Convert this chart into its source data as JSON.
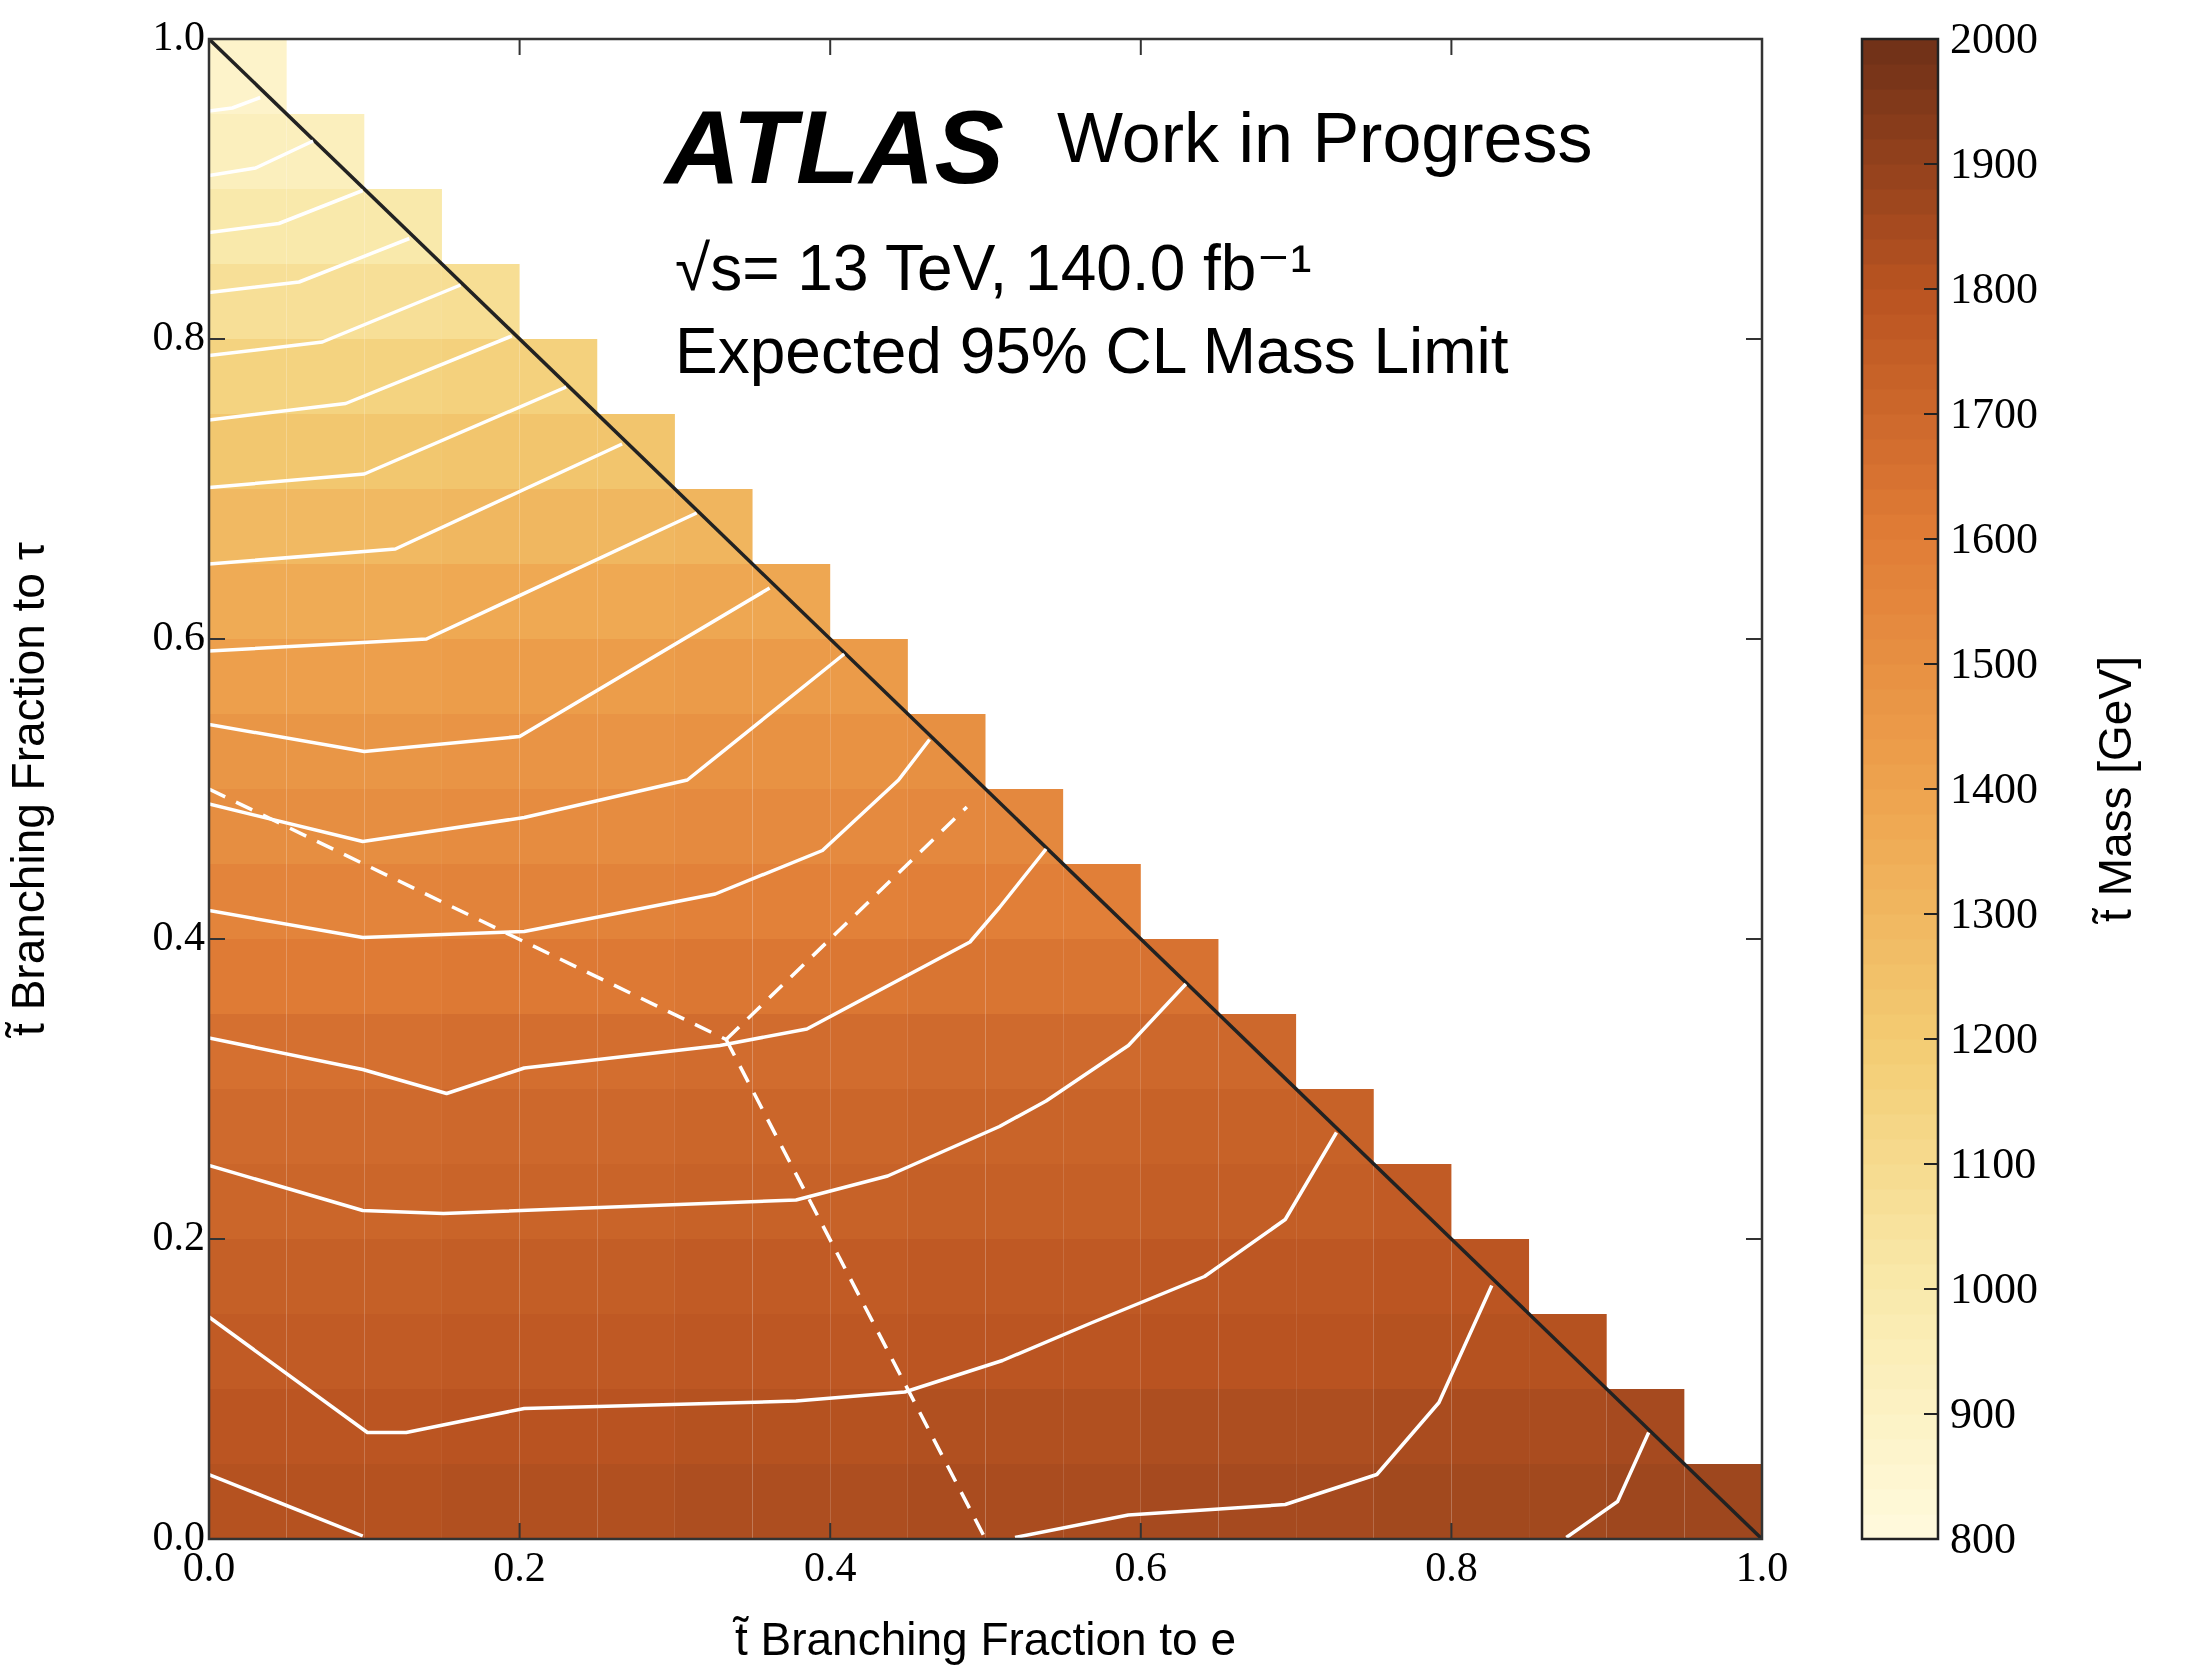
{
  "chart_data": {
    "type": "heatmap",
    "xlabel": "t̃ Branching Fraction to e",
    "ylabel": "t̃ Branching Fraction to τ",
    "clabel": "t̃ Mass [GeV]",
    "annotations": [
      "ATLAS",
      "Work in Progress",
      "√s= 13 TeV, 140.0 fb⁻¹",
      "Expected 95% CL Mass Limit"
    ],
    "xlim": [
      0,
      1
    ],
    "ylim": [
      0,
      1
    ],
    "xticks": [
      {
        "value": 0,
        "label": "0.0"
      },
      {
        "value": 0.2,
        "label": "0.2"
      },
      {
        "value": 0.4,
        "label": "0.4"
      },
      {
        "value": 0.6,
        "label": "0.6"
      },
      {
        "value": 0.8,
        "label": "0.8"
      },
      {
        "value": 1,
        "label": "1.0"
      }
    ],
    "yticks": [
      {
        "value": 0,
        "label": "0.0"
      },
      {
        "value": 0.2,
        "label": "0.2"
      },
      {
        "value": 0.4,
        "label": "0.4"
      },
      {
        "value": 0.6,
        "label": "0.6"
      },
      {
        "value": 0.8,
        "label": "0.8"
      },
      {
        "value": 1,
        "label": "1.0"
      }
    ],
    "clim": [
      800,
      2000
    ],
    "cticks": [
      800,
      900,
      1000,
      1100,
      1200,
      1300,
      1400,
      1500,
      1600,
      1700,
      1800,
      1900,
      2000
    ],
    "marker": "none",
    "cells": [
      [
        880,
        null,
        null,
        null,
        null,
        null,
        null,
        null,
        null,
        null,
        null,
        null,
        null,
        null,
        null,
        null,
        null,
        null,
        null,
        null
      ],
      [
        930,
        930,
        null,
        null,
        null,
        null,
        null,
        null,
        null,
        null,
        null,
        null,
        null,
        null,
        null,
        null,
        null,
        null,
        null,
        null
      ],
      [
        1000,
        1000,
        1000,
        null,
        null,
        null,
        null,
        null,
        null,
        null,
        null,
        null,
        null,
        null,
        null,
        null,
        null,
        null,
        null,
        null
      ],
      [
        1070,
        1070,
        1070,
        1080,
        null,
        null,
        null,
        null,
        null,
        null,
        null,
        null,
        null,
        null,
        null,
        null,
        null,
        null,
        null,
        null
      ],
      [
        1150,
        1150,
        1150,
        1160,
        1160,
        null,
        null,
        null,
        null,
        null,
        null,
        null,
        null,
        null,
        null,
        null,
        null,
        null,
        null,
        null
      ],
      [
        1220,
        1220,
        1220,
        1230,
        1230,
        1230,
        null,
        null,
        null,
        null,
        null,
        null,
        null,
        null,
        null,
        null,
        null,
        null,
        null,
        null
      ],
      [
        1290,
        1290,
        1290,
        1300,
        1300,
        1300,
        1310,
        null,
        null,
        null,
        null,
        null,
        null,
        null,
        null,
        null,
        null,
        null,
        null,
        null
      ],
      [
        1360,
        1360,
        1360,
        1370,
        1370,
        1370,
        1380,
        1380,
        null,
        null,
        null,
        null,
        null,
        null,
        null,
        null,
        null,
        null,
        null,
        null
      ],
      [
        1420,
        1420,
        1420,
        1430,
        1430,
        1430,
        1440,
        1440,
        1440,
        null,
        null,
        null,
        null,
        null,
        null,
        null,
        null,
        null,
        null,
        null
      ],
      [
        1470,
        1470,
        1470,
        1480,
        1480,
        1480,
        1490,
        1490,
        1490,
        1500,
        null,
        null,
        null,
        null,
        null,
        null,
        null,
        null,
        null,
        null
      ],
      [
        1510,
        1510,
        1510,
        1520,
        1520,
        1520,
        1530,
        1530,
        1530,
        1540,
        1540,
        null,
        null,
        null,
        null,
        null,
        null,
        null,
        null,
        null
      ],
      [
        1560,
        1560,
        1560,
        1570,
        1570,
        1570,
        1580,
        1580,
        1580,
        1590,
        1590,
        1590,
        null,
        null,
        null,
        null,
        null,
        null,
        null,
        null
      ],
      [
        1610,
        1610,
        1610,
        1620,
        1620,
        1620,
        1630,
        1630,
        1630,
        1640,
        1640,
        1640,
        1650,
        null,
        null,
        null,
        null,
        null,
        null,
        null
      ],
      [
        1660,
        1660,
        1660,
        1670,
        1670,
        1670,
        1680,
        1680,
        1680,
        1690,
        1690,
        1690,
        1700,
        1700,
        null,
        null,
        null,
        null,
        null,
        null
      ],
      [
        1690,
        1690,
        1690,
        1700,
        1700,
        1700,
        1710,
        1710,
        1710,
        1720,
        1720,
        1720,
        1730,
        1730,
        1730,
        null,
        null,
        null,
        null,
        null
      ],
      [
        1710,
        1710,
        1710,
        1720,
        1720,
        1720,
        1730,
        1730,
        1730,
        1740,
        1740,
        1740,
        1750,
        1750,
        1750,
        1760,
        null,
        null,
        null,
        null
      ],
      [
        1740,
        1740,
        1740,
        1750,
        1750,
        1750,
        1760,
        1760,
        1760,
        1770,
        1770,
        1770,
        1780,
        1780,
        1780,
        1790,
        1790,
        null,
        null,
        null
      ],
      [
        1760,
        1760,
        1760,
        1770,
        1770,
        1770,
        1780,
        1780,
        1780,
        1790,
        1790,
        1790,
        1800,
        1800,
        1800,
        1810,
        1810,
        1810,
        null,
        null
      ],
      [
        1790,
        1790,
        1790,
        1800,
        1800,
        1800,
        1810,
        1810,
        1810,
        1820,
        1820,
        1820,
        1830,
        1830,
        1830,
        1840,
        1840,
        1840,
        1850,
        null
      ],
      [
        1810,
        1810,
        1810,
        1820,
        1820,
        1820,
        1830,
        1830,
        1830,
        1840,
        1840,
        1840,
        1850,
        1850,
        1850,
        1860,
        1860,
        1860,
        1870,
        1870
      ]
    ],
    "series": [
      {
        "type": "line",
        "color": "#ffffff",
        "line_style": "solid",
        "x": [
          0,
          0.015,
          0.033
        ],
        "values": [
          0.952,
          0.954,
          0.961
        ]
      },
      {
        "type": "line",
        "color": "#ffffff",
        "line_style": "solid",
        "x": [
          0,
          0.03,
          0.067
        ],
        "values": [
          0.909,
          0.914,
          0.932
        ]
      },
      {
        "type": "line",
        "color": "#ffffff",
        "line_style": "solid",
        "x": [
          0,
          0.045,
          0.099
        ],
        "values": [
          0.871,
          0.877,
          0.899
        ]
      },
      {
        "type": "line",
        "color": "#ffffff",
        "line_style": "solid",
        "x": [
          0,
          0.058,
          0.129
        ],
        "values": [
          0.831,
          0.838,
          0.867
        ]
      },
      {
        "type": "line",
        "color": "#ffffff",
        "line_style": "solid",
        "x": [
          0,
          0.073,
          0.162
        ],
        "values": [
          0.789,
          0.798,
          0.836
        ]
      },
      {
        "type": "line",
        "color": "#ffffff",
        "line_style": "solid",
        "x": [
          0,
          0.088,
          0.195
        ],
        "values": [
          0.746,
          0.757,
          0.802
        ]
      },
      {
        "type": "line",
        "color": "#ffffff",
        "line_style": "solid",
        "x": [
          0,
          0.1,
          0.23
        ],
        "values": [
          0.701,
          0.71,
          0.768
        ]
      },
      {
        "type": "line",
        "color": "#ffffff",
        "line_style": "solid",
        "x": [
          0,
          0.12,
          0.266
        ],
        "values": [
          0.65,
          0.66,
          0.73
        ]
      },
      {
        "type": "line",
        "color": "#ffffff",
        "line_style": "solid",
        "x": [
          0,
          0.14,
          0.314
        ],
        "values": [
          0.592,
          0.6,
          0.684
        ]
      },
      {
        "type": "line",
        "color": "#ffffff",
        "line_style": "solid",
        "x": [
          0,
          0.1,
          0.2,
          0.361
        ],
        "values": [
          0.543,
          0.525,
          0.535,
          0.634
        ]
      },
      {
        "type": "line",
        "color": "#ffffff",
        "line_style": "solid",
        "x": [
          0,
          0.099,
          0.203,
          0.308,
          0.409
        ],
        "values": [
          0.49,
          0.465,
          0.481,
          0.506,
          0.59
        ]
      },
      {
        "type": "line",
        "color": "#ffffff",
        "line_style": "solid",
        "x": [
          0,
          0.099,
          0.203,
          0.326,
          0.395,
          0.444,
          0.464
        ],
        "values": [
          0.419,
          0.401,
          0.405,
          0.43,
          0.459,
          0.506,
          0.533
        ]
      },
      {
        "type": "line",
        "color": "#ffffff",
        "line_style": "solid",
        "x": [
          0,
          0.099,
          0.153,
          0.203,
          0.329,
          0.385,
          0.49,
          0.509,
          0.539
        ],
        "values": [
          0.334,
          0.313,
          0.297,
          0.314,
          0.329,
          0.34,
          0.398,
          0.421,
          0.46
        ]
      },
      {
        "type": "line",
        "color": "#ffffff",
        "line_style": "solid",
        "x": [
          0,
          0.099,
          0.151,
          0.378,
          0.437,
          0.509,
          0.539,
          0.592,
          0.629
        ],
        "values": [
          0.249,
          0.219,
          0.217,
          0.226,
          0.242,
          0.275,
          0.292,
          0.329,
          0.37
        ]
      },
      {
        "type": "line",
        "color": "#ffffff",
        "line_style": "solid",
        "x": [
          0,
          0.102,
          0.127,
          0.203,
          0.378,
          0.448,
          0.511,
          0.568,
          0.641,
          0.693,
          0.726
        ],
        "values": [
          0.148,
          0.071,
          0.071,
          0.087,
          0.092,
          0.098,
          0.119,
          0.144,
          0.175,
          0.213,
          0.271
        ]
      },
      {
        "type": "line",
        "color": "#ffffff",
        "line_style": "solid",
        "x": [
          0,
          0.099
        ],
        "values": [
          0.043,
          0.002
        ]
      },
      {
        "type": "line",
        "color": "#ffffff",
        "line_style": "solid",
        "x": [
          0.519,
          0.592,
          0.693,
          0.752,
          0.792,
          0.826
        ],
        "values": [
          0.001,
          0.016,
          0.023,
          0.043,
          0.091,
          0.169
        ]
      },
      {
        "type": "line",
        "color": "#ffffff",
        "line_style": "solid",
        "x": [
          0.874,
          0.907,
          0.927
        ],
        "values": [
          0.001,
          0.025,
          0.071
        ]
      },
      {
        "type": "line",
        "color": "#ffffff",
        "line_style": "dashed",
        "x": [
          0,
          0.333
        ],
        "values": [
          0.5,
          0.333
        ]
      },
      {
        "type": "line",
        "color": "#ffffff",
        "line_style": "dashed",
        "x": [
          0.333,
          0.488
        ],
        "values": [
          0.333,
          0.488
        ]
      },
      {
        "type": "line",
        "color": "#ffffff",
        "line_style": "dashed",
        "x": [
          0.333,
          0.5
        ],
        "values": [
          0.333,
          0
        ]
      },
      {
        "type": "line",
        "color": "#222222",
        "line_style": "solid",
        "x": [
          0,
          1
        ],
        "values": [
          1,
          0
        ]
      }
    ]
  }
}
